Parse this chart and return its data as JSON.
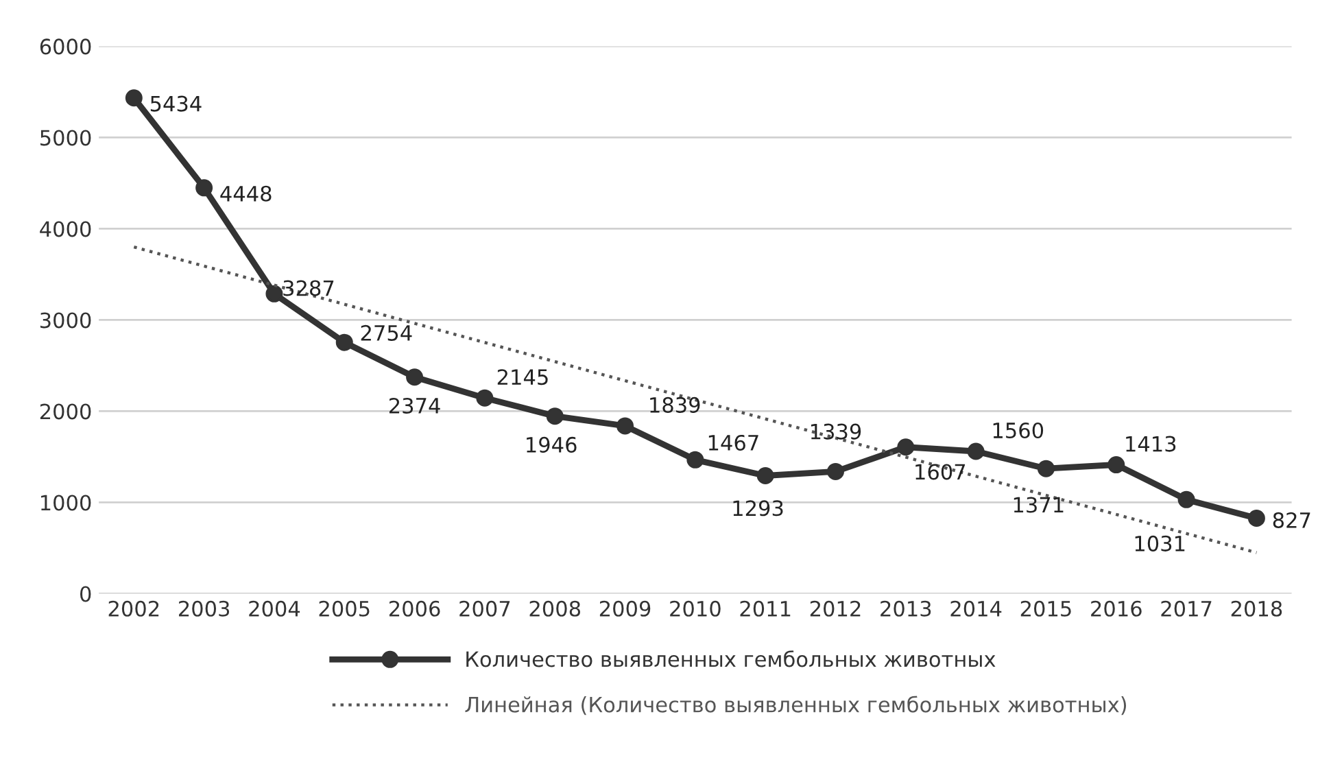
{
  "chart_data": {
    "type": "line",
    "x": [
      2002,
      2003,
      2004,
      2005,
      2006,
      2007,
      2008,
      2009,
      2010,
      2011,
      2012,
      2013,
      2014,
      2015,
      2016,
      2017,
      2018
    ],
    "xlim": [
      2001.5,
      2018.5
    ],
    "xticks": [
      2002,
      2003,
      2004,
      2005,
      2006,
      2007,
      2008,
      2009,
      2010,
      2011,
      2012,
      2013,
      2014,
      2015,
      2016,
      2017,
      2018
    ],
    "ylim": [
      0,
      6000
    ],
    "yticks": [
      0,
      1000,
      2000,
      3000,
      4000,
      5000,
      6000
    ],
    "grid": "y",
    "legend": "bottom",
    "series": [
      {
        "name": "Количество выявленных гембольных животных",
        "color": "#333333",
        "marker": "circle",
        "line_style": "solid",
        "values": [
          5434,
          4448,
          3287,
          2754,
          2374,
          2145,
          1946,
          1839,
          1467,
          1293,
          1339,
          1607,
          1560,
          1371,
          1413,
          1031,
          827
        ],
        "value_labels": [
          "5434",
          "4448",
          "3287",
          "2754",
          "2374",
          "2145",
          "1946",
          "1839",
          "1467",
          "1293",
          "1339",
          "1607",
          "1560",
          "1371",
          "1413",
          "1031",
          "827"
        ]
      },
      {
        "name": "Линейная (Количество выявленных гембольных животных)",
        "color": "#555555",
        "marker": "none",
        "line_style": "dotted",
        "x": [
          2002,
          2018
        ],
        "values": [
          3800,
          450
        ]
      }
    ]
  }
}
